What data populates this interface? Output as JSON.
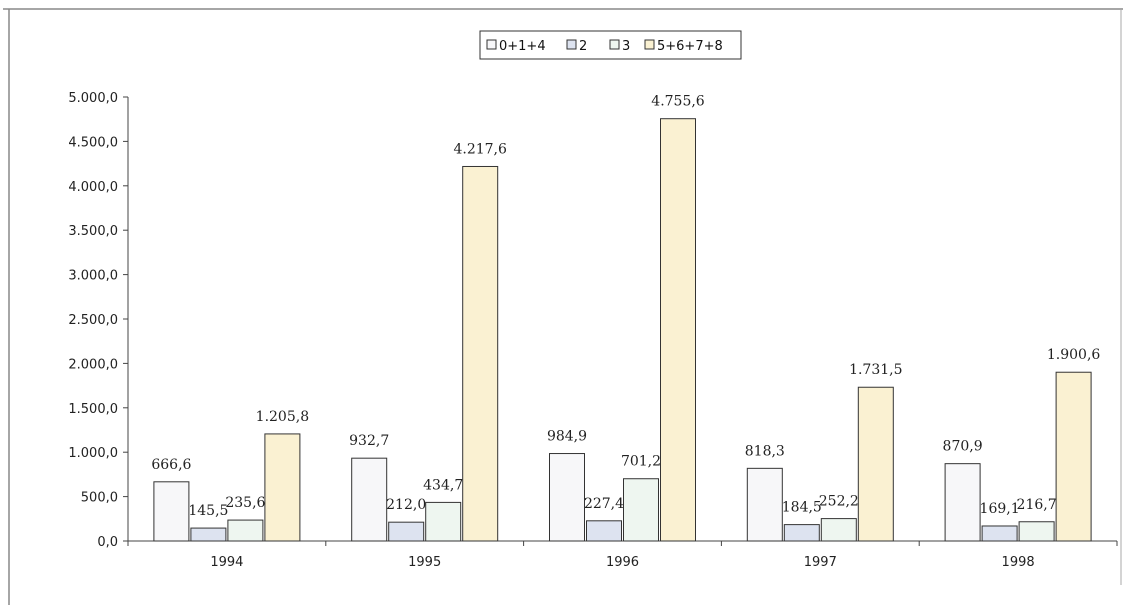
{
  "chart_data": {
    "type": "bar",
    "categories": [
      "1994",
      "1995",
      "1996",
      "1997",
      "1998"
    ],
    "series": [
      {
        "name": "0+1+4",
        "color": "#f7f7f9",
        "values": [
          666.6,
          932.7,
          984.9,
          818.3,
          870.9
        ],
        "labels": [
          "666,6",
          "932,7",
          "984,9",
          "818,3",
          "870,9"
        ]
      },
      {
        "name": "2",
        "color": "#dde3f0",
        "values": [
          145.5,
          212.0,
          227.4,
          184.5,
          169.1
        ],
        "labels": [
          "145,5",
          "212,0",
          "227,4",
          "184,5",
          "169,1"
        ]
      },
      {
        "name": "3",
        "color": "#eef6f0",
        "values": [
          235.6,
          434.7,
          701.2,
          252.2,
          216.7
        ],
        "labels": [
          "235,6",
          "434,7",
          "701,2",
          "252,2",
          "216,7"
        ]
      },
      {
        "name": "5+6+7+8",
        "color": "#faf1d2",
        "values": [
          1205.8,
          4217.6,
          4755.6,
          1731.5,
          1900.6
        ],
        "labels": [
          "1.205,8",
          "4.217,6",
          "4.755,6",
          "1.731,5",
          "1.900,6"
        ]
      }
    ],
    "ylim": [
      0,
      5000
    ],
    "yticks": [
      "0,0",
      "500,0",
      "1.000,0",
      "1.500,0",
      "2.000,0",
      "2.500,0",
      "3.000,0",
      "3.500,0",
      "4.000,0",
      "4.500,0",
      "5.000,0"
    ],
    "legend_labels": [
      "0+1+4",
      "2",
      "3",
      "5+6+7+8"
    ],
    "legend_position": "top-center",
    "grid": false,
    "title": "",
    "xlabel": "",
    "ylabel": ""
  }
}
